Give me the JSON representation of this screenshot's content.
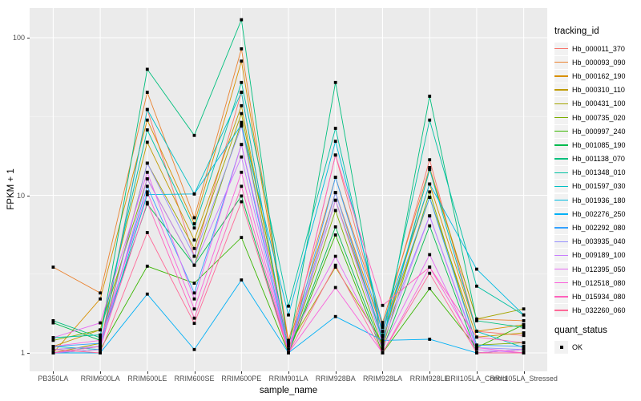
{
  "chart_data": {
    "type": "line",
    "title": "",
    "xlabel": "sample_name",
    "ylabel": "FPKM + 1",
    "y_scale": "log10",
    "ylim": [
      1,
      150
    ],
    "y_ticks": [
      1,
      10,
      100
    ],
    "y_tick_labels": [
      "1",
      "10",
      "100"
    ],
    "y_minor_ticks": [
      3.1623,
      31.623
    ],
    "grid": true,
    "panel_bg": "#EBEBEB",
    "grid_color": "#FFFFFF",
    "point_shape": "square",
    "point_color": "#000000",
    "legend_position": "right",
    "x_categories": [
      "PB350LA",
      "RRIM600LA",
      "RRIM600LE",
      "RRIM600SE",
      "RRIM600PE",
      "RRIM901LA",
      "RRIM928BA",
      "RRIM928LA",
      "RRIM928LE",
      "RRII105LA_Control",
      "RRII105LA_Stressed"
    ],
    "series": [
      {
        "name": "Hb_000011_370",
        "color": "#F8766D",
        "values": [
          1.05,
          1.1,
          35,
          4.1,
          45,
          1.0,
          18,
          1.45,
          16.8,
          1.37,
          1.29
        ]
      },
      {
        "name": "Hb_000093_090",
        "color": "#EA8331",
        "values": [
          3.5,
          2.4,
          45,
          7.2,
          85,
          1.2,
          13,
          1.56,
          15,
          1.64,
          1.6
        ]
      },
      {
        "name": "Hb_000162_190",
        "color": "#D89000",
        "values": [
          1.0,
          2.2,
          30,
          6.6,
          71,
          1.15,
          10.4,
          1.37,
          11.8,
          1.37,
          1.51
        ]
      },
      {
        "name": "Hb_000310_110",
        "color": "#C09B00",
        "values": [
          1.1,
          1.4,
          21.7,
          5.2,
          37,
          1.0,
          9.3,
          1.26,
          9.7,
          1.26,
          1.34
        ]
      },
      {
        "name": "Hb_000431_100",
        "color": "#A3A500",
        "values": [
          1.0,
          1.15,
          16,
          4.6,
          33,
          1.1,
          3.5,
          1.15,
          14.6,
          1.64,
          1.9
        ]
      },
      {
        "name": "Hb_000735_020",
        "color": "#7CAE00",
        "values": [
          1.2,
          1.4,
          12.7,
          3.6,
          29,
          1.0,
          8.0,
          1.08,
          10.5,
          1.12,
          1.16
        ]
      },
      {
        "name": "Hb_000997_240",
        "color": "#39B600",
        "values": [
          1.0,
          1.05,
          3.55,
          2.77,
          5.4,
          1.0,
          5.6,
          1.0,
          2.56,
          1.08,
          1.51
        ]
      },
      {
        "name": "Hb_001085_190",
        "color": "#00BB4E",
        "values": [
          1.55,
          1.2,
          8.8,
          3.6,
          9.9,
          1.0,
          6.3,
          1.05,
          6.4,
          1.0,
          1.05
        ]
      },
      {
        "name": "Hb_001138_070",
        "color": "#00BF7D",
        "values": [
          1.6,
          1.25,
          63,
          24,
          130,
          1.05,
          52,
          1.1,
          42.5,
          1.6,
          1.45
        ]
      },
      {
        "name": "Hb_001348_010",
        "color": "#00C1A3",
        "values": [
          1.25,
          1.3,
          26,
          6.2,
          52,
          1.98,
          26.6,
          1.3,
          30,
          2.65,
          1.74
        ]
      },
      {
        "name": "Hb_001597_030",
        "color": "#00BFC4",
        "values": [
          1.1,
          1.05,
          35,
          10.2,
          45,
          1.0,
          10.4,
          1.2,
          14.6,
          1.37,
          1.08
        ]
      },
      {
        "name": "Hb_001936_180",
        "color": "#00BAE0",
        "values": [
          1.0,
          1.1,
          10.1,
          10.2,
          28,
          1.74,
          22,
          1.5,
          11.8,
          3.4,
          1.74
        ]
      },
      {
        "name": "Hb_002276_250",
        "color": "#00B0F6",
        "values": [
          1.0,
          1.0,
          2.36,
          1.05,
          2.9,
          1.0,
          1.7,
          1.2,
          1.22,
          1.0,
          1.0
        ]
      },
      {
        "name": "Hb_002292_080",
        "color": "#35A2FF",
        "values": [
          1.1,
          1.15,
          11.4,
          2.4,
          21,
          1.0,
          13,
          1.37,
          9.7,
          1.12,
          1.1
        ]
      },
      {
        "name": "Hb_003935_040",
        "color": "#9590FF",
        "values": [
          1.05,
          1.1,
          16,
          4.1,
          27.5,
          1.0,
          10.4,
          1.26,
          7.4,
          1.08,
          1.05
        ]
      },
      {
        "name": "Hb_009189_100",
        "color": "#C77CFF",
        "values": [
          1.0,
          1.05,
          12.7,
          3.6,
          17.5,
          1.0,
          9.3,
          1.15,
          7.4,
          1.05,
          1.0
        ]
      },
      {
        "name": "Hb_012395_050",
        "color": "#E76BF3",
        "values": [
          1.25,
          1.55,
          14,
          2.2,
          21,
          1.15,
          4.1,
          1.08,
          4.2,
          1.0,
          1.05
        ]
      },
      {
        "name": "Hb_012518_080",
        "color": "#FA62DB",
        "values": [
          1.1,
          1.2,
          10.5,
          1.9,
          14,
          1.0,
          2.6,
          1.0,
          3.5,
          1.08,
          1.0
        ]
      },
      {
        "name": "Hb_015934_080",
        "color": "#FF62BC",
        "values": [
          1.0,
          1.1,
          9.0,
          1.66,
          11.4,
          1.0,
          18,
          2.0,
          3.5,
          1.26,
          1.16
        ]
      },
      {
        "name": "Hb_032260_060",
        "color": "#FF6A98",
        "values": [
          1.05,
          1.0,
          5.8,
          1.54,
          9.1,
          1.0,
          3.6,
          1.0,
          3.2,
          1.0,
          1.0
        ]
      }
    ]
  },
  "legend": {
    "tracking_title": "tracking_id",
    "quant_title": "quant_status",
    "quant_items": [
      {
        "label": "OK"
      }
    ]
  }
}
